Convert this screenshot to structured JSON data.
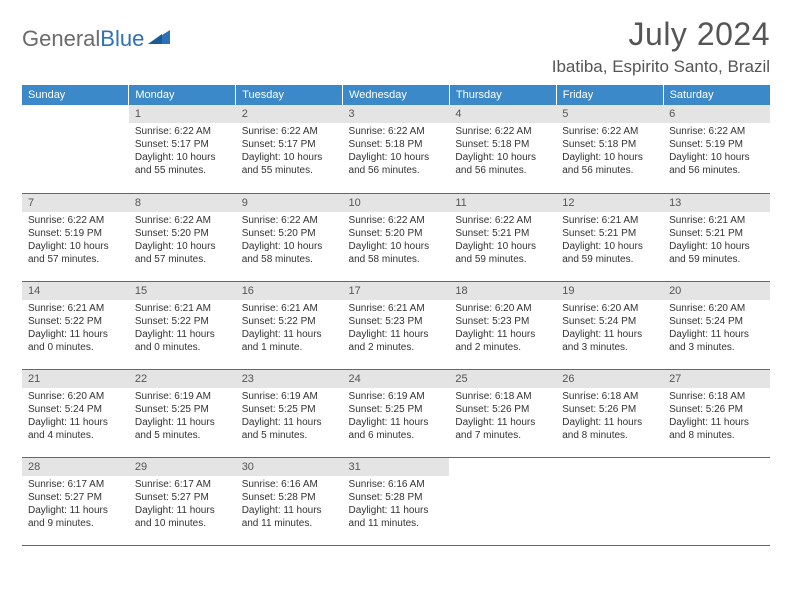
{
  "brand": {
    "part1": "General",
    "part2": "Blue"
  },
  "title": "July 2024",
  "location": "Ibatiba, Espirito Santo, Brazil",
  "colors": {
    "header_bg": "#3b89c9",
    "header_text": "#ffffff",
    "daynum_bg": "#e4e4e4",
    "rule": "#3b6fa5",
    "logo_gray": "#6b6b6b",
    "logo_blue": "#2d71b8"
  },
  "dayNames": [
    "Sunday",
    "Monday",
    "Tuesday",
    "Wednesday",
    "Thursday",
    "Friday",
    "Saturday"
  ],
  "weeks": [
    [
      {
        "num": "",
        "lines": []
      },
      {
        "num": "1",
        "lines": [
          "Sunrise: 6:22 AM",
          "Sunset: 5:17 PM",
          "Daylight: 10 hours",
          "and 55 minutes."
        ]
      },
      {
        "num": "2",
        "lines": [
          "Sunrise: 6:22 AM",
          "Sunset: 5:17 PM",
          "Daylight: 10 hours",
          "and 55 minutes."
        ]
      },
      {
        "num": "3",
        "lines": [
          "Sunrise: 6:22 AM",
          "Sunset: 5:18 PM",
          "Daylight: 10 hours",
          "and 56 minutes."
        ]
      },
      {
        "num": "4",
        "lines": [
          "Sunrise: 6:22 AM",
          "Sunset: 5:18 PM",
          "Daylight: 10 hours",
          "and 56 minutes."
        ]
      },
      {
        "num": "5",
        "lines": [
          "Sunrise: 6:22 AM",
          "Sunset: 5:18 PM",
          "Daylight: 10 hours",
          "and 56 minutes."
        ]
      },
      {
        "num": "6",
        "lines": [
          "Sunrise: 6:22 AM",
          "Sunset: 5:19 PM",
          "Daylight: 10 hours",
          "and 56 minutes."
        ]
      }
    ],
    [
      {
        "num": "7",
        "lines": [
          "Sunrise: 6:22 AM",
          "Sunset: 5:19 PM",
          "Daylight: 10 hours",
          "and 57 minutes."
        ]
      },
      {
        "num": "8",
        "lines": [
          "Sunrise: 6:22 AM",
          "Sunset: 5:20 PM",
          "Daylight: 10 hours",
          "and 57 minutes."
        ]
      },
      {
        "num": "9",
        "lines": [
          "Sunrise: 6:22 AM",
          "Sunset: 5:20 PM",
          "Daylight: 10 hours",
          "and 58 minutes."
        ]
      },
      {
        "num": "10",
        "lines": [
          "Sunrise: 6:22 AM",
          "Sunset: 5:20 PM",
          "Daylight: 10 hours",
          "and 58 minutes."
        ]
      },
      {
        "num": "11",
        "lines": [
          "Sunrise: 6:22 AM",
          "Sunset: 5:21 PM",
          "Daylight: 10 hours",
          "and 59 minutes."
        ]
      },
      {
        "num": "12",
        "lines": [
          "Sunrise: 6:21 AM",
          "Sunset: 5:21 PM",
          "Daylight: 10 hours",
          "and 59 minutes."
        ]
      },
      {
        "num": "13",
        "lines": [
          "Sunrise: 6:21 AM",
          "Sunset: 5:21 PM",
          "Daylight: 10 hours",
          "and 59 minutes."
        ]
      }
    ],
    [
      {
        "num": "14",
        "lines": [
          "Sunrise: 6:21 AM",
          "Sunset: 5:22 PM",
          "Daylight: 11 hours",
          "and 0 minutes."
        ]
      },
      {
        "num": "15",
        "lines": [
          "Sunrise: 6:21 AM",
          "Sunset: 5:22 PM",
          "Daylight: 11 hours",
          "and 0 minutes."
        ]
      },
      {
        "num": "16",
        "lines": [
          "Sunrise: 6:21 AM",
          "Sunset: 5:22 PM",
          "Daylight: 11 hours",
          "and 1 minute."
        ]
      },
      {
        "num": "17",
        "lines": [
          "Sunrise: 6:21 AM",
          "Sunset: 5:23 PM",
          "Daylight: 11 hours",
          "and 2 minutes."
        ]
      },
      {
        "num": "18",
        "lines": [
          "Sunrise: 6:20 AM",
          "Sunset: 5:23 PM",
          "Daylight: 11 hours",
          "and 2 minutes."
        ]
      },
      {
        "num": "19",
        "lines": [
          "Sunrise: 6:20 AM",
          "Sunset: 5:24 PM",
          "Daylight: 11 hours",
          "and 3 minutes."
        ]
      },
      {
        "num": "20",
        "lines": [
          "Sunrise: 6:20 AM",
          "Sunset: 5:24 PM",
          "Daylight: 11 hours",
          "and 3 minutes."
        ]
      }
    ],
    [
      {
        "num": "21",
        "lines": [
          "Sunrise: 6:20 AM",
          "Sunset: 5:24 PM",
          "Daylight: 11 hours",
          "and 4 minutes."
        ]
      },
      {
        "num": "22",
        "lines": [
          "Sunrise: 6:19 AM",
          "Sunset: 5:25 PM",
          "Daylight: 11 hours",
          "and 5 minutes."
        ]
      },
      {
        "num": "23",
        "lines": [
          "Sunrise: 6:19 AM",
          "Sunset: 5:25 PM",
          "Daylight: 11 hours",
          "and 5 minutes."
        ]
      },
      {
        "num": "24",
        "lines": [
          "Sunrise: 6:19 AM",
          "Sunset: 5:25 PM",
          "Daylight: 11 hours",
          "and 6 minutes."
        ]
      },
      {
        "num": "25",
        "lines": [
          "Sunrise: 6:18 AM",
          "Sunset: 5:26 PM",
          "Daylight: 11 hours",
          "and 7 minutes."
        ]
      },
      {
        "num": "26",
        "lines": [
          "Sunrise: 6:18 AM",
          "Sunset: 5:26 PM",
          "Daylight: 11 hours",
          "and 8 minutes."
        ]
      },
      {
        "num": "27",
        "lines": [
          "Sunrise: 6:18 AM",
          "Sunset: 5:26 PM",
          "Daylight: 11 hours",
          "and 8 minutes."
        ]
      }
    ],
    [
      {
        "num": "28",
        "lines": [
          "Sunrise: 6:17 AM",
          "Sunset: 5:27 PM",
          "Daylight: 11 hours",
          "and 9 minutes."
        ]
      },
      {
        "num": "29",
        "lines": [
          "Sunrise: 6:17 AM",
          "Sunset: 5:27 PM",
          "Daylight: 11 hours",
          "and 10 minutes."
        ]
      },
      {
        "num": "30",
        "lines": [
          "Sunrise: 6:16 AM",
          "Sunset: 5:28 PM",
          "Daylight: 11 hours",
          "and 11 minutes."
        ]
      },
      {
        "num": "31",
        "lines": [
          "Sunrise: 6:16 AM",
          "Sunset: 5:28 PM",
          "Daylight: 11 hours",
          "and 11 minutes."
        ]
      },
      {
        "num": "",
        "lines": []
      },
      {
        "num": "",
        "lines": []
      },
      {
        "num": "",
        "lines": []
      }
    ]
  ]
}
